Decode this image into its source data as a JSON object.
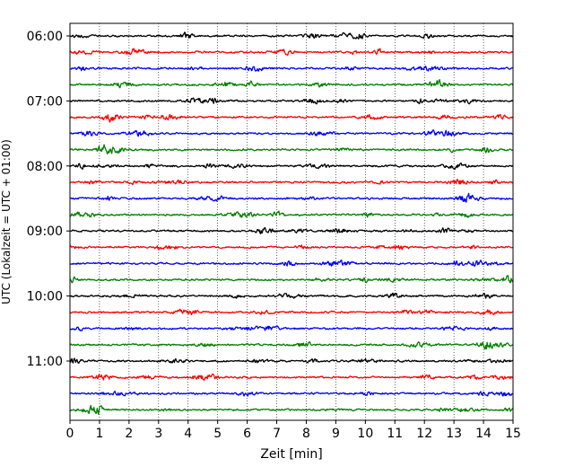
{
  "chart_data": {
    "type": "line",
    "xlabel": "Zeit  [min]",
    "ylabel": "UTC (Lokalzeit = UTC + 01:00)",
    "xlim": [
      0,
      15
    ],
    "x_ticks": [
      0,
      1,
      2,
      3,
      4,
      5,
      6,
      7,
      8,
      9,
      10,
      11,
      12,
      13,
      14,
      15
    ],
    "y_ticks": [
      "06:00",
      "07:00",
      "08:00",
      "09:00",
      "10:00",
      "11:00"
    ],
    "grid": "vertical-dotted",
    "trace_colors": [
      "#000000",
      "#ff0000",
      "#0000ff",
      "#008000"
    ],
    "traces": [
      "06:00",
      "06:15",
      "06:30",
      "06:45",
      "07:00",
      "07:15",
      "07:30",
      "07:45",
      "08:00",
      "08:15",
      "08:30",
      "08:45",
      "09:00",
      "09:15",
      "09:30",
      "09:45",
      "10:00",
      "10:15",
      "10:30",
      "10:45",
      "11:00",
      "11:15",
      "11:30",
      "11:45"
    ]
  }
}
